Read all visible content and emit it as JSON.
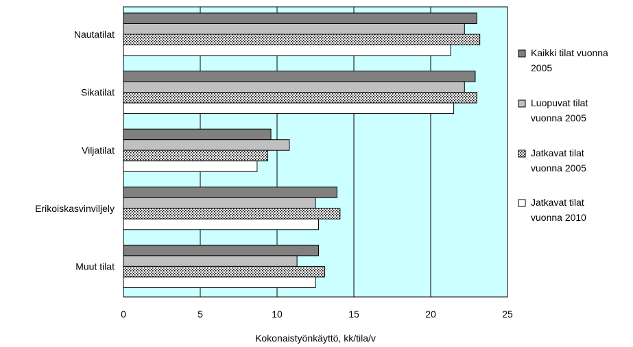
{
  "chart_data": {
    "type": "bar",
    "orientation": "horizontal",
    "categories": [
      "Nautatilat",
      "Sikatilat",
      "Viljatilat",
      "Erikoiskasvinviljely",
      "Muut tilat"
    ],
    "series": [
      {
        "name": "Kaikki tilat vuonna 2005",
        "values": [
          23.0,
          22.9,
          9.6,
          13.9,
          12.7
        ],
        "color": "#808080",
        "pattern": "solid"
      },
      {
        "name": "Luopuvat tilat vuonna 2005",
        "values": [
          22.2,
          22.2,
          10.8,
          12.5,
          11.3
        ],
        "color": "#c0c0c0",
        "pattern": "solid"
      },
      {
        "name": "Jatkavat tilat vuonna 2005",
        "values": [
          23.2,
          23.0,
          9.4,
          14.1,
          13.1
        ],
        "color": "#ffffff",
        "pattern": "dotted"
      },
      {
        "name": "Jatkavat tilat vuonna 2010",
        "values": [
          21.3,
          21.5,
          8.7,
          12.7,
          12.5
        ],
        "color": "#ffffff",
        "pattern": "solid"
      }
    ],
    "xlabel": "Kokonaistyönkäyttö, kk/tila/v",
    "ylabel": "",
    "xlim": [
      0,
      25
    ],
    "xticks": [
      "0",
      "5",
      "10",
      "15",
      "20",
      "25"
    ],
    "grid": "vertical",
    "plot_background": "#ccffff",
    "legend_position": "right"
  }
}
